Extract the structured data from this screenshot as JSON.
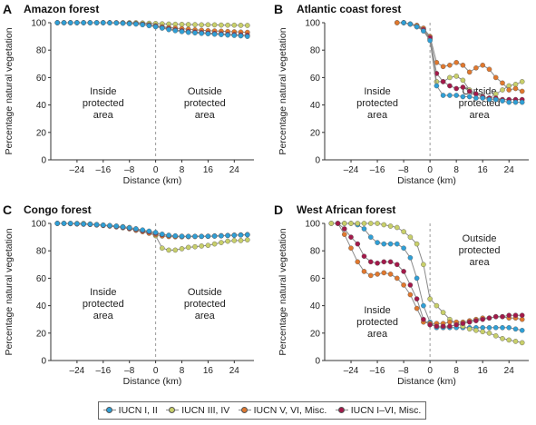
{
  "colors": {
    "IUCN I, II": "#2f9fd6",
    "IUCN III, IV": "#c8cf6a",
    "IUCN V, VI, Misc.": "#e0782e",
    "IUCN I–VI, Misc.": "#a3194a"
  },
  "legend": [
    {
      "label": "IUCN I, II",
      "key": "IUCN I, II"
    },
    {
      "label": "IUCN III, IV",
      "key": "IUCN III, IV"
    },
    {
      "label": "IUCN V, VI, Misc.",
      "key": "IUCN V, VI, Misc."
    },
    {
      "label": "IUCN I–VI, Misc.",
      "key": "IUCN I–VI, Misc."
    }
  ],
  "chart_data": [
    {
      "type": "line",
      "panel_letter": "A",
      "title": "Amazon forest",
      "xlabel": "Distance (km)",
      "ylabel": "Percentage natural vegetation",
      "xlim": [
        -32,
        30
      ],
      "ylim": [
        0,
        100
      ],
      "xticks": [
        -24,
        -16,
        -8,
        0,
        8,
        16,
        24
      ],
      "yticks": [
        0,
        20,
        40,
        60,
        80,
        100
      ],
      "inside_label": [
        "Inside",
        "protected",
        "area"
      ],
      "outside_label": [
        "Outside",
        "protected",
        "area"
      ],
      "series": [
        {
          "name": "IUCN III, IV",
          "x": [
            -30,
            -28,
            -26,
            -24,
            -22,
            -20,
            -18,
            -16,
            -14,
            -12,
            -10,
            -8,
            -6,
            -4,
            -2,
            0,
            2,
            4,
            6,
            8,
            10,
            12,
            14,
            16,
            18,
            20,
            22,
            24,
            26,
            28
          ],
          "y": [
            100,
            100,
            100,
            100,
            100,
            100,
            100,
            100,
            100,
            100,
            100,
            100,
            100,
            99.8,
            99.6,
            99.4,
            99.2,
            99,
            98.9,
            98.8,
            98.7,
            98.6,
            98.5,
            98.5,
            98.4,
            98.3,
            98.2,
            98.2,
            98.1,
            98
          ]
        },
        {
          "name": "IUCN V, VI, Misc.",
          "x": [
            -30,
            -28,
            -26,
            -24,
            -22,
            -20,
            -18,
            -16,
            -14,
            -12,
            -10,
            -8,
            -6,
            -4,
            -2,
            0,
            2,
            4,
            6,
            8,
            10,
            12,
            14,
            16,
            18,
            20,
            22,
            24,
            26,
            28
          ],
          "y": [
            100,
            100,
            100,
            100,
            100,
            100,
            100,
            100,
            100,
            99.9,
            99.8,
            99.6,
            99.4,
            99,
            98.5,
            97.8,
            97,
            96.5,
            96,
            95.6,
            95.2,
            94.8,
            94.5,
            94.2,
            94,
            93.8,
            93.6,
            93.4,
            93.2,
            93
          ]
        },
        {
          "name": "IUCN I–VI, Misc.",
          "x": [
            -30,
            -28,
            -26,
            -24,
            -22,
            -20,
            -18,
            -16,
            -14,
            -12,
            -10,
            -8,
            -6,
            -4,
            -2,
            0,
            2,
            4,
            6,
            8,
            10,
            12,
            14,
            16,
            18,
            20,
            22,
            24,
            26,
            28
          ],
          "y": [
            100,
            100,
            100,
            100,
            100,
            100,
            100,
            100,
            100,
            99.9,
            99.7,
            99.5,
            99.2,
            98.8,
            98.2,
            97.4,
            96.4,
            95.6,
            94.8,
            94.1,
            93.6,
            93.2,
            92.8,
            92.5,
            92.2,
            91.9,
            91.6,
            91.4,
            91.1,
            90.8
          ]
        },
        {
          "name": "IUCN I, II",
          "x": [
            -30,
            -28,
            -26,
            -24,
            -22,
            -20,
            -18,
            -16,
            -14,
            -12,
            -10,
            -8,
            -6,
            -4,
            -2,
            0,
            2,
            4,
            6,
            8,
            10,
            12,
            14,
            16,
            18,
            20,
            22,
            24,
            26,
            28
          ],
          "y": [
            100,
            100,
            100,
            100,
            100,
            100,
            100,
            100,
            99.9,
            99.8,
            99.6,
            99.3,
            99,
            98.5,
            97.8,
            97,
            96,
            95,
            94.2,
            93.5,
            93,
            92.6,
            92.2,
            91.9,
            91.6,
            91.3,
            91,
            90.7,
            90.4,
            90
          ]
        }
      ]
    },
    {
      "type": "line",
      "panel_letter": "B",
      "title": "Atlantic coast forest",
      "xlabel": "Distance (km)",
      "ylabel": "Percentage natural vegetation",
      "xlim": [
        -32,
        30
      ],
      "ylim": [
        0,
        100
      ],
      "xticks": [
        -24,
        -16,
        -8,
        0,
        8,
        16,
        24
      ],
      "yticks": [
        0,
        20,
        40,
        60,
        80,
        100
      ],
      "inside_label": [
        "Inside",
        "protected",
        "area"
      ],
      "outside_label": [
        "Outside",
        "protected",
        "area"
      ],
      "series": [
        {
          "name": "IUCN III, IV",
          "x": [
            -10,
            -8,
            -6,
            -4,
            -2,
            0,
            2,
            4,
            6,
            8,
            10,
            12,
            14,
            16,
            18,
            20,
            22,
            24,
            26,
            28
          ],
          "y": [
            100,
            100,
            99,
            98,
            95,
            88,
            57,
            57,
            60,
            61,
            58,
            51,
            48,
            46,
            45,
            48,
            51,
            54,
            55,
            57
          ]
        },
        {
          "name": "IUCN V, VI, Misc.",
          "x": [
            -10,
            -8,
            -6,
            -4,
            -2,
            0,
            2,
            4,
            6,
            8,
            10,
            12,
            14,
            16,
            18,
            20,
            22,
            24,
            26,
            28
          ],
          "y": [
            100,
            100,
            99,
            98,
            96,
            90,
            71,
            68,
            69,
            71,
            69,
            64,
            67,
            69,
            66,
            60,
            56,
            51,
            52,
            50
          ]
        },
        {
          "name": "IUCN I–VI, Misc.",
          "x": [
            -8,
            -6,
            -4,
            -2,
            0,
            2,
            4,
            6,
            8,
            10,
            12,
            14,
            16,
            18,
            20,
            22,
            24,
            26,
            28
          ],
          "y": [
            100,
            99,
            97,
            95,
            89,
            63,
            57,
            54,
            52,
            53,
            50,
            48,
            46,
            45,
            45,
            44,
            44,
            44,
            44
          ]
        },
        {
          "name": "IUCN I, II",
          "x": [
            -8,
            -6,
            -4,
            -2,
            0,
            2,
            4,
            6,
            8,
            10,
            12,
            14,
            16,
            18,
            20,
            22,
            24,
            26,
            28
          ],
          "y": [
            100,
            99,
            97,
            94,
            87,
            54,
            47,
            47,
            47,
            46,
            46,
            45,
            45,
            44,
            44,
            43,
            42,
            42,
            42
          ]
        }
      ]
    },
    {
      "type": "line",
      "panel_letter": "C",
      "title": "Congo forest",
      "xlabel": "Distance (km)",
      "ylabel": "Percentage natural vegetation",
      "xlim": [
        -32,
        30
      ],
      "ylim": [
        0,
        100
      ],
      "xticks": [
        -24,
        -16,
        -8,
        0,
        8,
        16,
        24
      ],
      "yticks": [
        0,
        20,
        40,
        60,
        80,
        100
      ],
      "inside_label": [
        "Inside",
        "protected",
        "area"
      ],
      "outside_label": [
        "Outside",
        "protected",
        "area"
      ],
      "series": [
        {
          "name": "IUCN III, IV",
          "x": [
            -30,
            -28,
            -26,
            -24,
            -22,
            -20,
            -18,
            -16,
            -14,
            -12,
            -10,
            -8,
            -6,
            -4,
            -2,
            0,
            2,
            4,
            6,
            8,
            10,
            12,
            14,
            16,
            18,
            20,
            22,
            24,
            26,
            28
          ],
          "y": [
            100,
            100,
            100,
            100,
            100,
            99.6,
            99.2,
            98.8,
            98.4,
            98,
            97.6,
            97,
            96,
            94.5,
            93,
            91,
            82,
            80.5,
            80.5,
            81.5,
            82.5,
            83,
            83.5,
            84,
            85,
            86,
            87,
            87.5,
            87.5,
            88
          ]
        },
        {
          "name": "IUCN V, VI, Misc.",
          "x": [
            -30,
            -28,
            -26,
            -24,
            -22,
            -20,
            -18,
            -16,
            -14,
            -12,
            -10,
            -8,
            -6,
            -4,
            -2,
            0,
            2,
            4,
            6,
            8,
            10,
            12,
            14,
            16,
            18,
            20,
            22,
            24,
            26,
            28
          ],
          "y": [
            100,
            100,
            99.8,
            99.6,
            99.4,
            99.2,
            98.8,
            98.4,
            98,
            97.4,
            96.8,
            96,
            95,
            94,
            92.8,
            91.8,
            90.8,
            90.4,
            90.2,
            90.2,
            90.3,
            90.4,
            90.5,
            90.6,
            90.8,
            91,
            91.2,
            91.4,
            91.6,
            91.8
          ]
        },
        {
          "name": "IUCN I–VI, Misc.",
          "x": [
            -30,
            -28,
            -26,
            -24,
            -22,
            -20,
            -18,
            -16,
            -14,
            -12,
            -10,
            -8,
            -6,
            -4,
            -2,
            0,
            2,
            4,
            6,
            8,
            10,
            12,
            14,
            16,
            18,
            20,
            22,
            24,
            26,
            28
          ],
          "y": [
            100,
            100,
            99.8,
            99.6,
            99.4,
            99.2,
            98.9,
            98.6,
            98.2,
            97.7,
            97.1,
            96.4,
            95.6,
            94.7,
            93.8,
            92.8,
            91.8,
            91.2,
            90.8,
            90.6,
            90.5,
            90.5,
            90.5,
            90.6,
            90.8,
            91,
            91.2,
            91.4,
            91.6,
            91.8
          ]
        },
        {
          "name": "IUCN I, II",
          "x": [
            -30,
            -28,
            -26,
            -24,
            -22,
            -20,
            -18,
            -16,
            -14,
            -12,
            -10,
            -8,
            -6,
            -4,
            -2,
            0,
            2,
            4,
            6,
            8,
            10,
            12,
            14,
            16,
            18,
            20,
            22,
            24,
            26,
            28
          ],
          "y": [
            100,
            100,
            100,
            99.8,
            99.6,
            99.4,
            99.1,
            98.8,
            98.4,
            98,
            97.4,
            96.8,
            96,
            95.2,
            94.4,
            93.4,
            92.2,
            91.4,
            90.9,
            90.6,
            90.5,
            90.5,
            90.5,
            90.6,
            90.7,
            90.9,
            91.1,
            91.3,
            91.5,
            91.7
          ]
        }
      ]
    },
    {
      "type": "line",
      "panel_letter": "D",
      "title": "West African forest",
      "xlabel": "Distance (km)",
      "ylabel": "Percentage natural vegetation",
      "xlim": [
        -32,
        30
      ],
      "ylim": [
        0,
        100
      ],
      "xticks": [
        -24,
        -16,
        -8,
        0,
        8,
        16,
        24
      ],
      "yticks": [
        0,
        20,
        40,
        60,
        80,
        100
      ],
      "inside_label": [
        "Inside",
        "protected",
        "area"
      ],
      "outside_label": [
        "Outside",
        "protected",
        "area"
      ],
      "inside_label_position": "bottom-left",
      "outside_label_position": "top-right",
      "series": [
        {
          "name": "IUCN I, II",
          "x": [
            -30,
            -28,
            -26,
            -24,
            -22,
            -20,
            -18,
            -16,
            -14,
            -12,
            -10,
            -8,
            -6,
            -4,
            -2,
            0,
            2,
            4,
            6,
            8,
            10,
            12,
            14,
            16,
            18,
            20,
            22,
            24,
            26,
            28
          ],
          "y": [
            100,
            100,
            100,
            100,
            99,
            96,
            90,
            86,
            85,
            85,
            85,
            82,
            75,
            60,
            40,
            28,
            24,
            24,
            24,
            24,
            24,
            24,
            24,
            24,
            24,
            24,
            24,
            24,
            23,
            22
          ]
        },
        {
          "name": "IUCN III, IV",
          "x": [
            -30,
            -28,
            -26,
            -24,
            -22,
            -20,
            -18,
            -16,
            -14,
            -12,
            -10,
            -8,
            -6,
            -4,
            -2,
            0,
            2,
            4,
            6,
            8,
            10,
            12,
            14,
            16,
            18,
            20,
            22,
            24,
            26,
            28
          ],
          "y": [
            100,
            100,
            100,
            100,
            100,
            100,
            100,
            100,
            99,
            98,
            97,
            94,
            90,
            85,
            70,
            45,
            40,
            35,
            30,
            27,
            25,
            23,
            22,
            21,
            20,
            18,
            16,
            15,
            14,
            13
          ]
        },
        {
          "name": "IUCN V, VI, Misc.",
          "x": [
            -28,
            -26,
            -24,
            -22,
            -20,
            -18,
            -16,
            -14,
            -12,
            -10,
            -8,
            -6,
            -4,
            -2,
            0,
            2,
            4,
            6,
            8,
            10,
            12,
            14,
            16,
            18,
            20,
            22,
            24,
            26,
            28
          ],
          "y": [
            100,
            92,
            82,
            72,
            65,
            62,
            63,
            64,
            63,
            60,
            55,
            48,
            38,
            28,
            27,
            27,
            27,
            28,
            28,
            28,
            29,
            30,
            31,
            31,
            32,
            32,
            31,
            31,
            30
          ]
        },
        {
          "name": "IUCN I–VI, Misc.",
          "x": [
            -28,
            -26,
            -24,
            -22,
            -20,
            -18,
            -16,
            -14,
            -12,
            -10,
            -8,
            -6,
            -4,
            -2,
            0,
            2,
            4,
            6,
            8,
            10,
            12,
            14,
            16,
            18,
            20,
            22,
            24,
            26,
            28
          ],
          "y": [
            100,
            96,
            90,
            85,
            76,
            72,
            71,
            72,
            72,
            70,
            65,
            55,
            45,
            30,
            26,
            25,
            25,
            25,
            26,
            27,
            28,
            29,
            30,
            31,
            32,
            32,
            33,
            33,
            33
          ]
        }
      ]
    }
  ]
}
